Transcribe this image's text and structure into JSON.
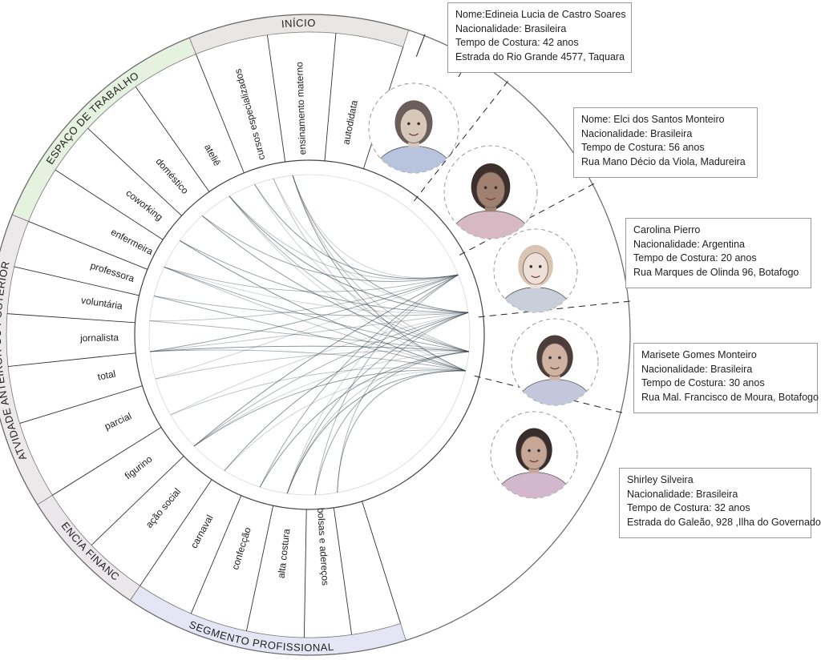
{
  "ring": {
    "bands": [
      {
        "id": "inicio",
        "label": "INÍCIO",
        "color": "#e9e6e6"
      },
      {
        "id": "espaco",
        "label": "ESPAÇO DE TRABALHO",
        "color": "#e6f2e0"
      },
      {
        "id": "atividade",
        "label": "ATVIDADE ANTEIROR OU  POSTERIOR",
        "color": "#ebe9ea"
      },
      {
        "id": "potencia",
        "label": "POTENCIA FINANCEIRA",
        "color": "#ece7ea"
      },
      {
        "id": "segmento",
        "label": "SEGMENTO PROFISSIONAL",
        "color": "#e4e6f5"
      }
    ],
    "segments": [
      {
        "label": "autodidata"
      },
      {
        "label": "ensinamento materno"
      },
      {
        "label": "cursos especializados"
      },
      {
        "label": "ateliê"
      },
      {
        "label": "doméstico"
      },
      {
        "label": "coworking"
      },
      {
        "label": "enfermeira"
      },
      {
        "label": "professora"
      },
      {
        "label": "voluntária"
      },
      {
        "label": "jornalista"
      },
      {
        "label": "total"
      },
      {
        "label": "parcial"
      },
      {
        "label": "figurino"
      },
      {
        "label": "ação social"
      },
      {
        "label": "carnaval"
      },
      {
        "label": "confecção"
      },
      {
        "label": "alta costura"
      },
      {
        "label": "bolsas e adereços"
      }
    ]
  },
  "people": [
    {
      "name": "Nome:Edineia Lucia de Castro Soares",
      "nationality": "Nacionalidade: Brasileira",
      "time": "Tempo de Costura: 42 anos",
      "address": "Estrada do Rio Grande 4577, Taquara",
      "portrait": "portrait-edineia"
    },
    {
      "name": "Nome: Elci dos Santos Monteiro",
      "nationality": "Nacionalidade: Brasileira",
      "time": "Tempo de Costura: 56 anos",
      "address": "Rua Mano Décio da Viola, Madureira",
      "portrait": "portrait-elci"
    },
    {
      "name": "Carolina Pierro",
      "nationality": "Nacionalidade: Argentina",
      "time": "Tempo de Costura: 20 anos",
      "address": "Rua Marques de Olinda 96, Botafogo",
      "portrait": "portrait-carolina"
    },
    {
      "name": "Marisete Gomes Monteiro",
      "nationality": "Nacionalidade: Brasileira",
      "time": "Tempo de Costura: 30 anos",
      "address": "Rua Mal. Francisco de Moura,  Botafogo",
      "portrait": "portrait-marisete"
    },
    {
      "name": "Shirley Silveira",
      "nationality": "Nacionalidade: Brasileira",
      "time": "Tempo de Costura: 32 anos",
      "address": "Estrada do Galeão, 928 ,Ilha do Governador",
      "portrait": "portrait-shirley"
    }
  ],
  "colors": {
    "line": "#2f3f47",
    "outline": "#333333"
  }
}
